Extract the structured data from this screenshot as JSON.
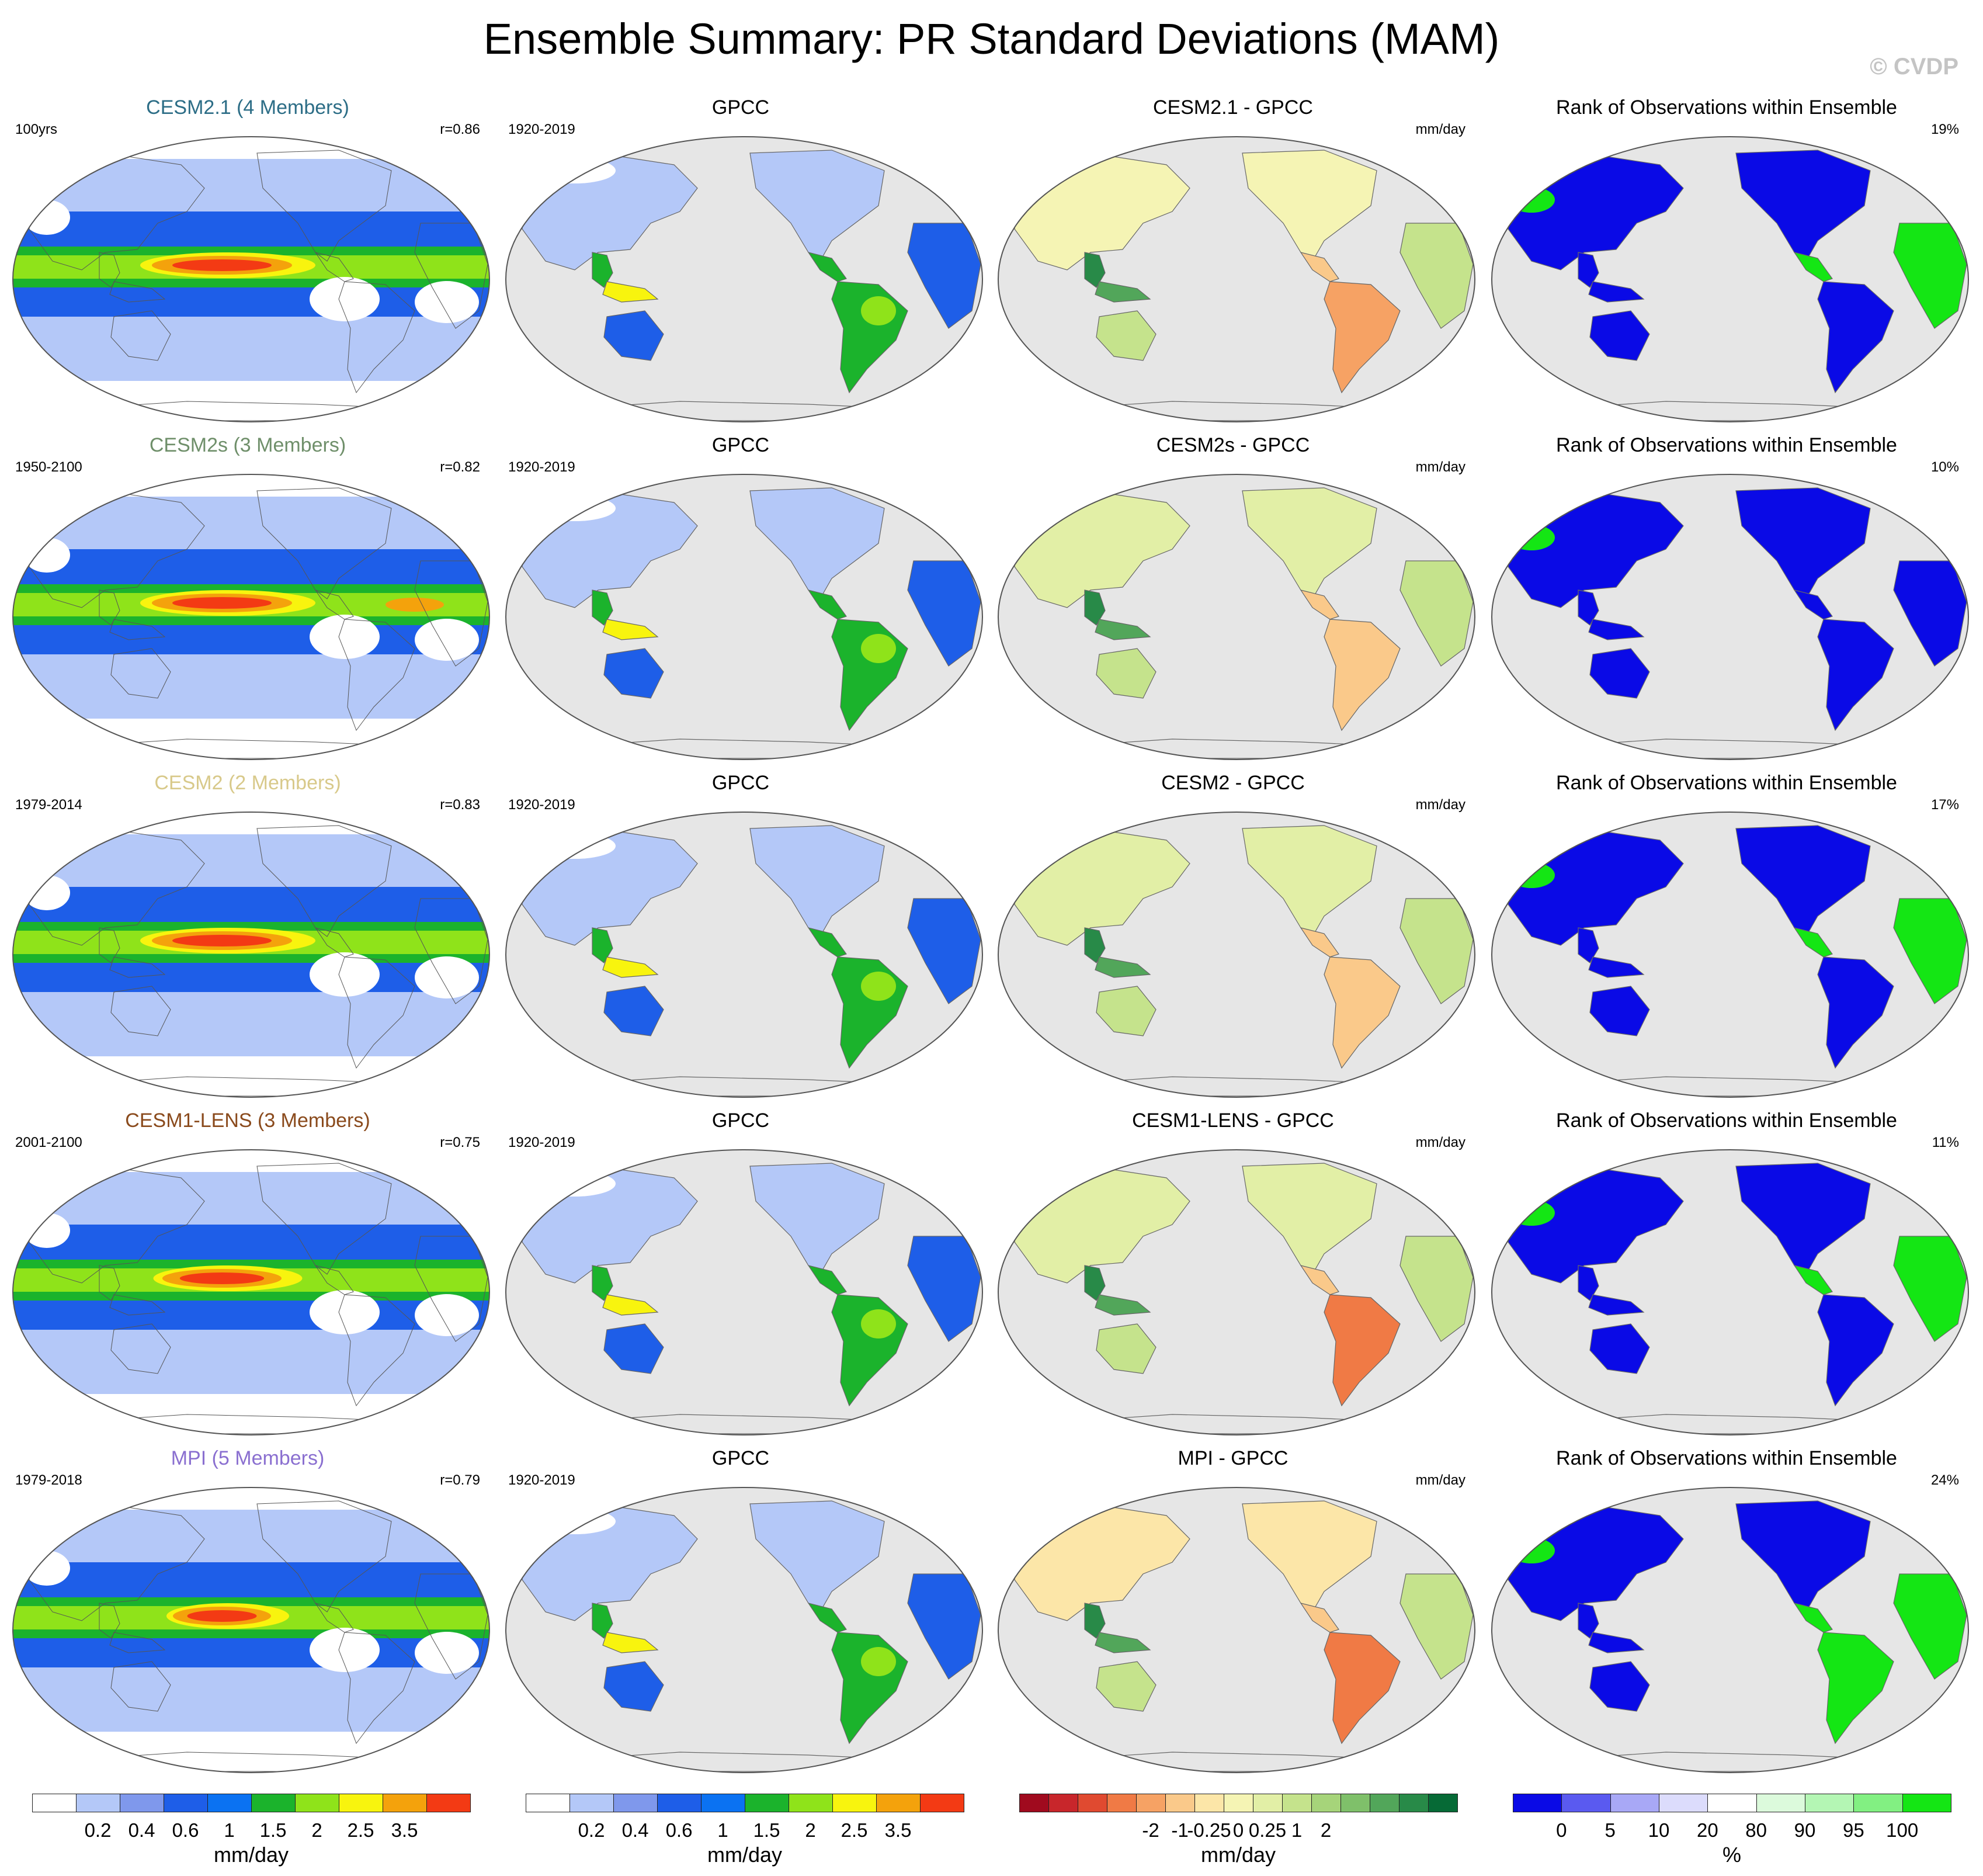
{
  "title": "Ensemble Summary: PR Standard Deviations (MAM)",
  "copyright": "© CVDP",
  "rows": [
    {
      "model": {
        "title": "CESM2.1 (4 Members)",
        "title_color": "#2c6d86",
        "left": "100yrs",
        "right": "r=0.86",
        "scheme": "model1"
      },
      "obs": {
        "title": "GPCC",
        "left": "1920-2019",
        "right": ""
      },
      "diff": {
        "title": "CESM2.1 - GPCC",
        "left": "",
        "right": "mm/day",
        "scheme": "diffA"
      },
      "rank": {
        "title": "Rank of Observations within Ensemble",
        "left": "",
        "right": "19%",
        "scheme": "rankA"
      }
    },
    {
      "model": {
        "title": "CESM2s (3 Members)",
        "title_color": "#6f8f6a",
        "left": "1950-2100",
        "right": "r=0.82",
        "scheme": "model2"
      },
      "obs": {
        "title": "GPCC",
        "left": "1920-2019",
        "right": ""
      },
      "diff": {
        "title": "CESM2s - GPCC",
        "left": "",
        "right": "mm/day",
        "scheme": "diffB"
      },
      "rank": {
        "title": "Rank of Observations within Ensemble",
        "left": "",
        "right": "10%",
        "scheme": "rankB"
      }
    },
    {
      "model": {
        "title": "CESM2 (2 Members)",
        "title_color": "#d8c98a",
        "left": "1979-2014",
        "right": "r=0.83",
        "scheme": "model1"
      },
      "obs": {
        "title": "GPCC",
        "left": "1920-2019",
        "right": ""
      },
      "diff": {
        "title": "CESM2 - GPCC",
        "left": "",
        "right": "mm/day",
        "scheme": "diffB"
      },
      "rank": {
        "title": "Rank of Observations within Ensemble",
        "left": "",
        "right": "17%",
        "scheme": "rankA"
      }
    },
    {
      "model": {
        "title": "CESM1-LENS (3 Members)",
        "title_color": "#8a4a1c",
        "left": "2001-2100",
        "right": "r=0.75",
        "scheme": "model3"
      },
      "obs": {
        "title": "GPCC",
        "left": "1920-2019",
        "right": ""
      },
      "diff": {
        "title": "CESM1-LENS - GPCC",
        "left": "",
        "right": "mm/day",
        "scheme": "diffC"
      },
      "rank": {
        "title": "Rank of Observations within Ensemble",
        "left": "",
        "right": "11%",
        "scheme": "rankC"
      }
    },
    {
      "model": {
        "title": "MPI (5 Members)",
        "title_color": "#8a6fd0",
        "left": "1979-2018",
        "right": "r=0.79",
        "scheme": "model4"
      },
      "obs": {
        "title": "GPCC",
        "left": "1920-2019",
        "right": ""
      },
      "diff": {
        "title": "MPI - GPCC",
        "left": "",
        "right": "mm/day",
        "scheme": "diffD"
      },
      "rank": {
        "title": "Rank of Observations within Ensemble",
        "left": "",
        "right": "24%",
        "scheme": "rankD"
      }
    }
  ],
  "colorbars": [
    {
      "id": "model-colorbar",
      "colors": [
        "#ffffff",
        "#b4c8f8",
        "#7f98ec",
        "#1e5ee8",
        "#0b72f2",
        "#1bb32c",
        "#8fe31a",
        "#f8f40e",
        "#f4a20c",
        "#f33a14"
      ],
      "ticks": [
        "0.2",
        "0.4",
        "0.6",
        "1",
        "1.5",
        "2",
        "2.5",
        "3.5"
      ],
      "unit": "mm/day"
    },
    {
      "id": "obs-colorbar",
      "colors": [
        "#ffffff",
        "#b4c8f8",
        "#7f98ec",
        "#1e5ee8",
        "#0b72f2",
        "#1bb32c",
        "#8fe31a",
        "#f8f40e",
        "#f4a20c",
        "#f33a14"
      ],
      "ticks": [
        "0.2",
        "0.4",
        "0.6",
        "1",
        "1.5",
        "2",
        "2.5",
        "3.5"
      ],
      "unit": "mm/day"
    },
    {
      "id": "diff-colorbar",
      "colors": [
        "#a00a1e",
        "#c8262b",
        "#e04a30",
        "#f07a45",
        "#f6a264",
        "#fac98a",
        "#fce6a8",
        "#f5f4b4",
        "#e2efa6",
        "#c5e38c",
        "#a6d47a",
        "#7fc06a",
        "#52a65a",
        "#288a48",
        "#066a36"
      ],
      "ticks": [
        "-2",
        "-1",
        "-0.25",
        "0",
        "0.25",
        "1",
        "2"
      ],
      "unit": "mm/day"
    },
    {
      "id": "rank-colorbar",
      "colors": [
        "#0a0ae6",
        "#5a5af0",
        "#a8a8f6",
        "#dcdcfc",
        "#ffffff",
        "#dcfadc",
        "#b4f6b4",
        "#82f082",
        "#14e614"
      ],
      "ticks": [
        "0",
        "5",
        "10",
        "20",
        "80",
        "90",
        "95",
        "100"
      ],
      "unit": "%"
    }
  ]
}
